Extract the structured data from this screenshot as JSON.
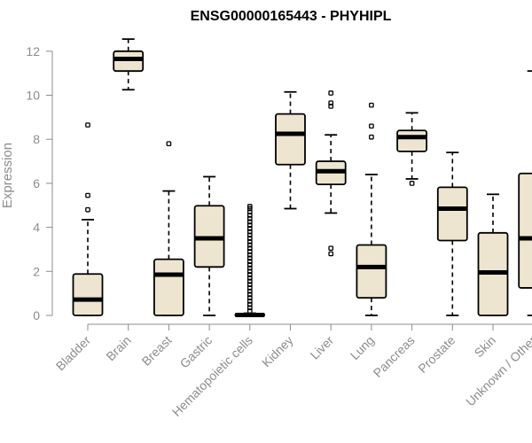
{
  "chart_data": {
    "type": "boxplot",
    "title": "ENSG00000165443 - PHYHIPL",
    "xlabel": "",
    "ylabel": "Expression",
    "ylim": [
      0,
      12
    ],
    "yticks": [
      0,
      2,
      4,
      6,
      8,
      10,
      12
    ],
    "colors": {
      "box_fill": "#ede5cf",
      "box_stroke": "#000000",
      "axis": "#8c8c8c"
    },
    "categories": [
      "Bladder",
      "Brain",
      "Breast",
      "Gastric",
      "Hematopoietic cells",
      "Kidney",
      "Liver",
      "Lung",
      "Pancreas",
      "Prostate",
      "Skin",
      "Unknown / Other"
    ],
    "boxes": [
      {
        "category": "Bladder",
        "min": 0,
        "q1": 0,
        "median": 0.72,
        "q3": 1.88,
        "max": 4.35,
        "outliers": [
          4.8,
          5.45,
          8.65
        ]
      },
      {
        "category": "Brain",
        "min": 10.25,
        "q1": 11.1,
        "median": 11.65,
        "q3": 12.0,
        "max": 12.55,
        "outliers": []
      },
      {
        "category": "Breast",
        "min": 0,
        "q1": 0,
        "median": 1.85,
        "q3": 2.55,
        "max": 5.65,
        "outliers": [
          7.8
        ]
      },
      {
        "category": "Gastric",
        "min": 0,
        "q1": 2.2,
        "median": 3.5,
        "q3": 4.98,
        "max": 6.3,
        "outliers": []
      },
      {
        "category": "Hematopoietic cells",
        "min": 0,
        "q1": 0,
        "median": 0.02,
        "q3": 0.05,
        "max": 0.1,
        "outliers": [
          0.2,
          0.35,
          0.5,
          0.65,
          0.8,
          0.95,
          1.1,
          1.25,
          1.4,
          1.55,
          1.7,
          1.85,
          2.0,
          2.15,
          2.3,
          2.45,
          2.6,
          2.75,
          2.9,
          3.05,
          3.2,
          3.35,
          3.5,
          3.65,
          3.8,
          3.95,
          4.1,
          4.25,
          4.4,
          4.55,
          4.7,
          4.85,
          4.95
        ]
      },
      {
        "category": "Kidney",
        "min": 4.85,
        "q1": 6.85,
        "median": 8.25,
        "q3": 9.15,
        "max": 10.15,
        "outliers": []
      },
      {
        "category": "Liver",
        "min": 4.65,
        "q1": 5.95,
        "median": 6.55,
        "q3": 7.0,
        "max": 8.2,
        "outliers": [
          2.8,
          3.05,
          9.5,
          9.65,
          10.1
        ]
      },
      {
        "category": "Lung",
        "min": 0,
        "q1": 0.8,
        "median": 2.2,
        "q3": 3.2,
        "max": 6.4,
        "outliers": [
          8.1,
          8.6,
          9.55
        ]
      },
      {
        "category": "Pancreas",
        "min": 6.2,
        "q1": 7.45,
        "median": 8.1,
        "q3": 8.4,
        "max": 9.2,
        "outliers": [
          6.0
        ]
      },
      {
        "category": "Prostate",
        "min": 0,
        "q1": 3.4,
        "median": 4.85,
        "q3": 5.82,
        "max": 7.4,
        "outliers": []
      },
      {
        "category": "Skin",
        "min": 0,
        "q1": 0,
        "median": 1.95,
        "q3": 3.75,
        "max": 5.5,
        "outliers": []
      },
      {
        "category": "Unknown / Other",
        "min": 0,
        "q1": 1.25,
        "median": 3.5,
        "q3": 6.45,
        "max": 11.1,
        "outliers": []
      }
    ]
  }
}
